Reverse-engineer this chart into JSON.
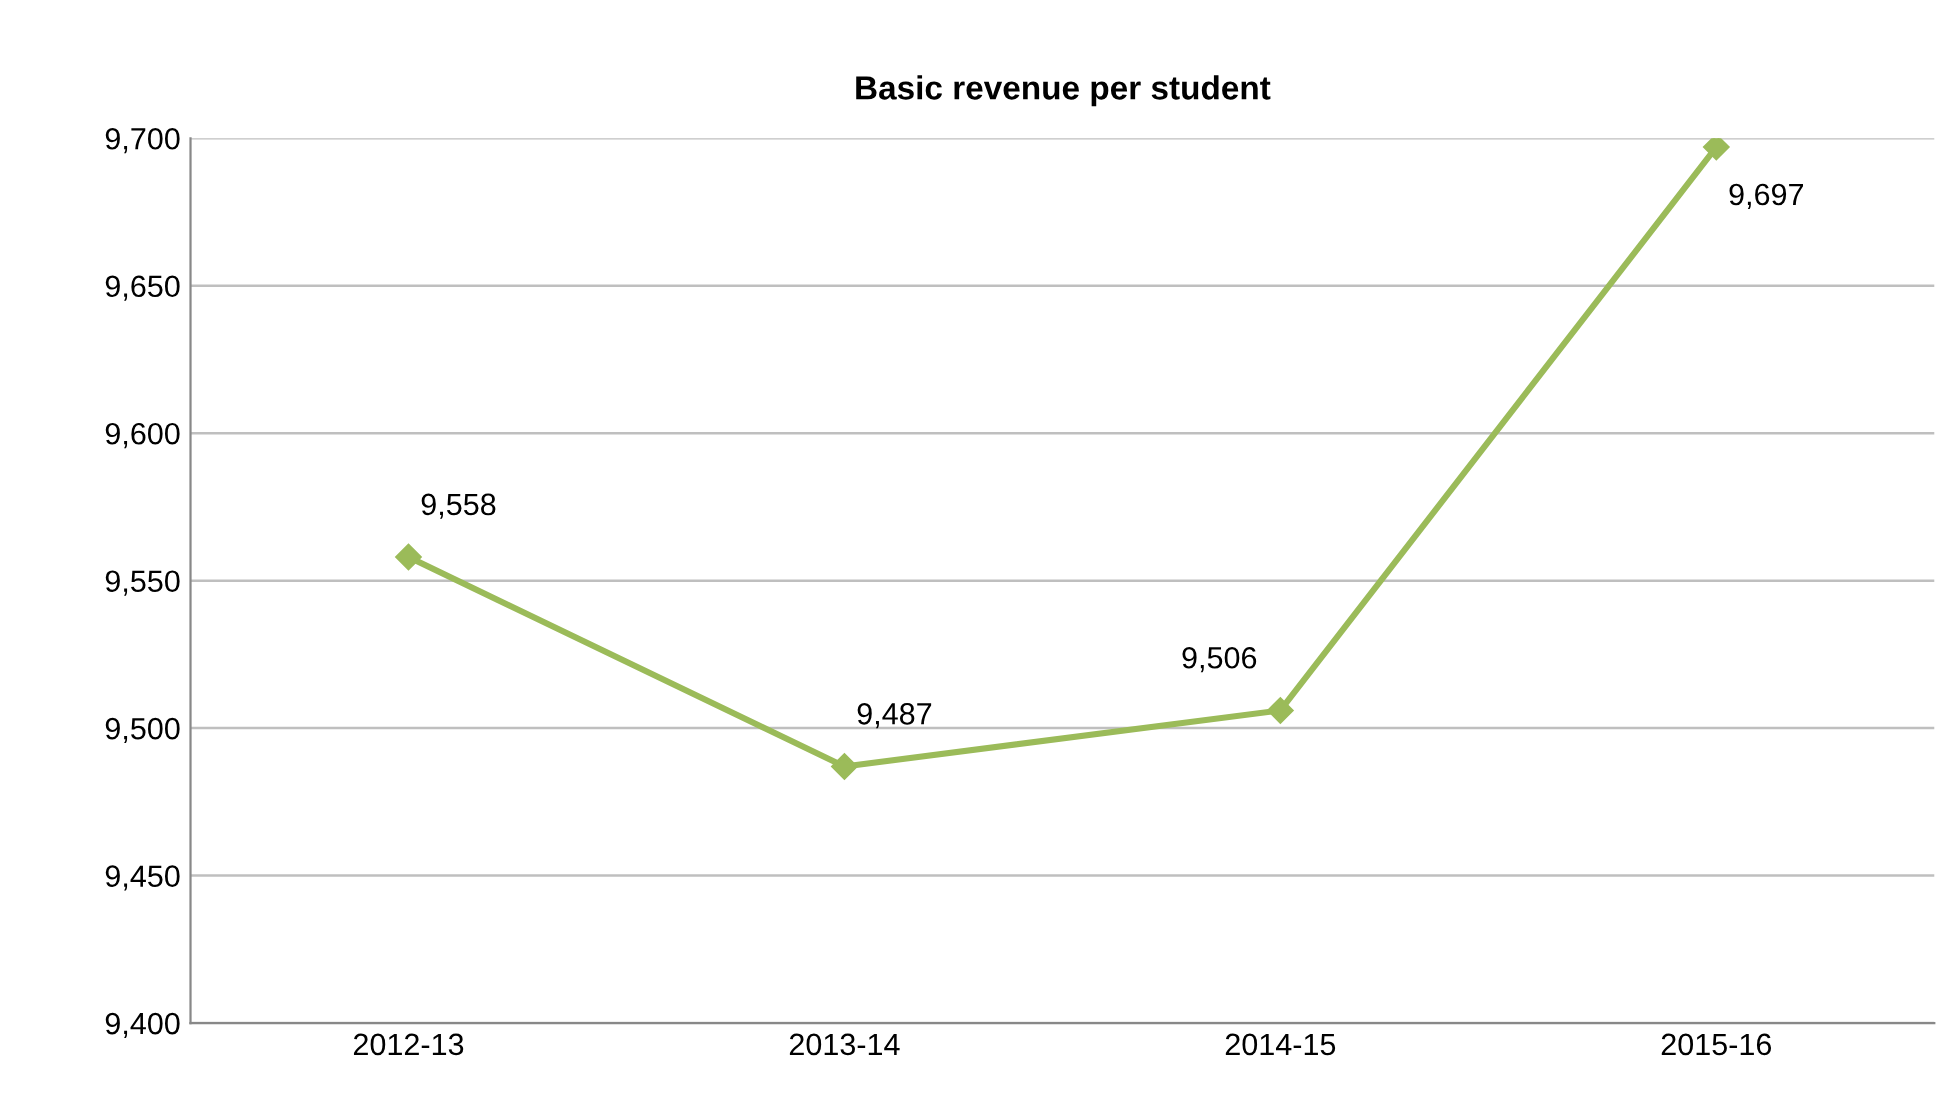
{
  "chart_data": {
    "type": "line",
    "title": "Basic revenue per student",
    "categories": [
      "2012-13",
      "2013-14",
      "2014-15",
      "2015-16"
    ],
    "series": [
      {
        "color": "#9bbb59",
        "values": [
          9558,
          9487,
          9506,
          9697
        ],
        "value_labels": [
          "9,558",
          "9,487",
          "9,506",
          "9,697"
        ]
      }
    ],
    "ylim": [
      9400,
      9700
    ],
    "yticks": [
      {
        "value": 9400,
        "label": "9,400"
      },
      {
        "value": 9450,
        "label": "9,450"
      },
      {
        "value": 9500,
        "label": "9,500"
      },
      {
        "value": 9550,
        "label": "9,550"
      },
      {
        "value": 9600,
        "label": "9,600"
      },
      {
        "value": 9650,
        "label": "9,650"
      },
      {
        "value": 9700,
        "label": "9,700"
      }
    ],
    "grid": "y",
    "marker": "diamond",
    "line_style": "solid",
    "legend": false
  }
}
